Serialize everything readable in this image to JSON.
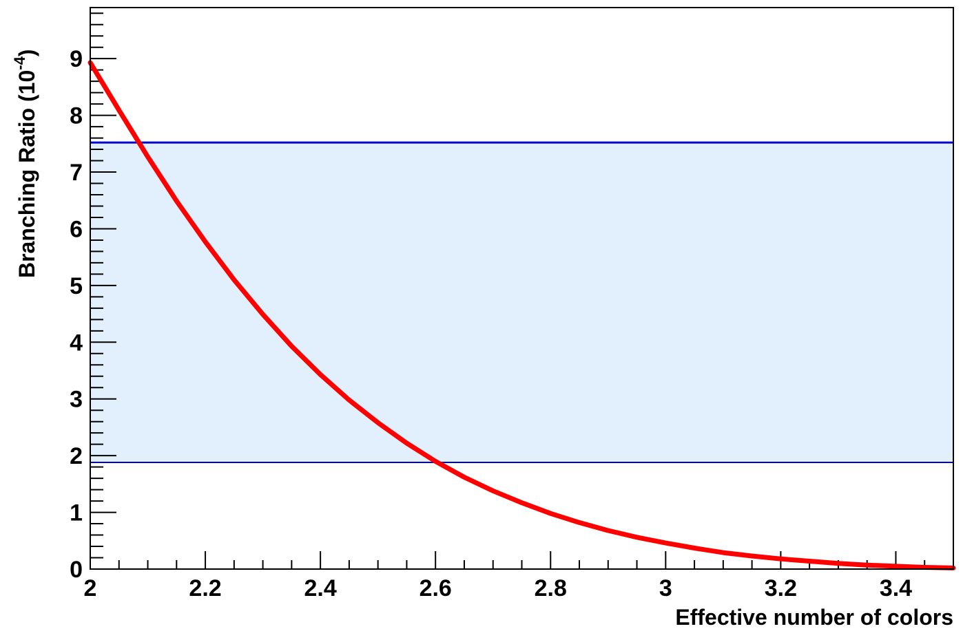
{
  "chart_data": {
    "type": "line",
    "title": "",
    "xlabel": "Effective number of colors",
    "ylabel": "Branching Ratio (10",
    "ylabel_exponent": "-4",
    "ylabel_close": ")",
    "xlim": [
      2.0,
      3.5
    ],
    "ylim": [
      0,
      9.9
    ],
    "x_ticks": [
      "2",
      "2.2",
      "2.4",
      "2.6",
      "2.8",
      "3",
      "3.2",
      "3.4"
    ],
    "y_ticks": [
      "0",
      "1",
      "2",
      "3",
      "4",
      "5",
      "6",
      "7",
      "8",
      "9"
    ],
    "grid": false,
    "band": {
      "lower": 1.88,
      "upper": 7.52,
      "fill_color": "#e1f0fc",
      "line_color": "#0000cc"
    },
    "series": [
      {
        "color": "#ff0000",
        "x": [
          2.0,
          2.05,
          2.1,
          2.15,
          2.2,
          2.25,
          2.3,
          2.35,
          2.4,
          2.45,
          2.5,
          2.55,
          2.6,
          2.65,
          2.7,
          2.75,
          2.8,
          2.85,
          2.9,
          2.95,
          3.0,
          3.05,
          3.1,
          3.15,
          3.2,
          3.25,
          3.3,
          3.35,
          3.4,
          3.45,
          3.5
        ],
        "y": [
          8.93,
          8.09,
          7.27,
          6.49,
          5.77,
          5.1,
          4.49,
          3.93,
          3.43,
          2.98,
          2.58,
          2.22,
          1.9,
          1.62,
          1.38,
          1.17,
          0.98,
          0.82,
          0.68,
          0.56,
          0.46,
          0.37,
          0.29,
          0.23,
          0.18,
          0.14,
          0.1,
          0.07,
          0.05,
          0.03,
          0.02
        ]
      }
    ]
  }
}
